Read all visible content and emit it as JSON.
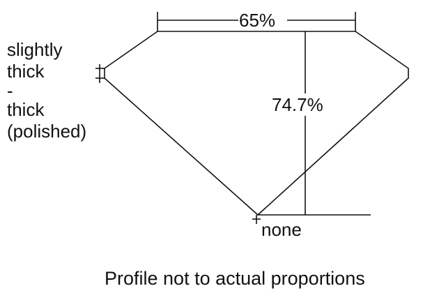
{
  "diagram": {
    "table_percent": "65%",
    "depth_percent": "74.7%",
    "culet": "none",
    "girdle_label_lines": [
      "slightly",
      "thick",
      "-",
      "thick",
      "(polished)"
    ],
    "footnote": "Profile not to actual proportions",
    "line_color": "#111111"
  }
}
